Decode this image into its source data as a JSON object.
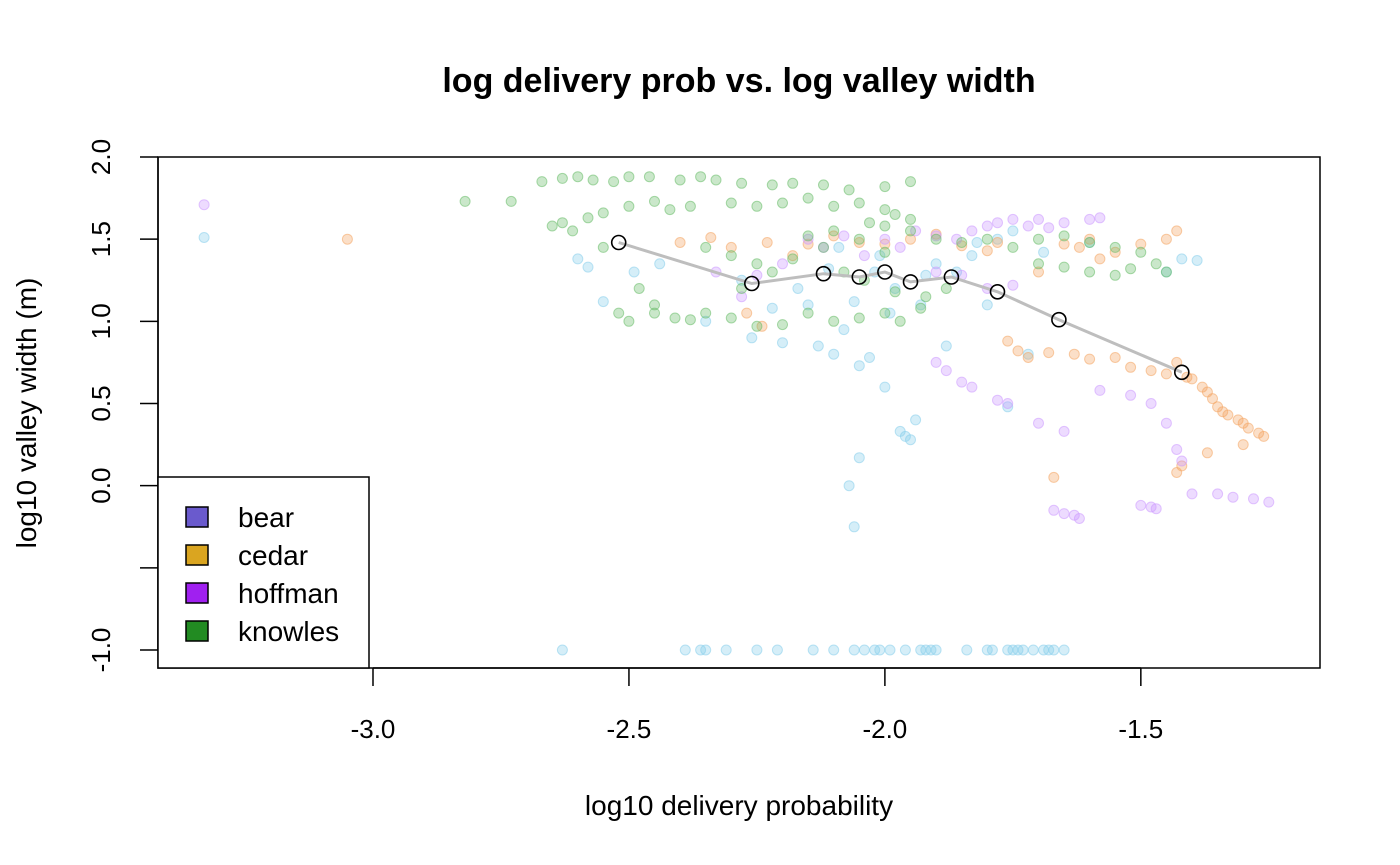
{
  "chart_data": {
    "type": "scatter",
    "title": "log delivery prob vs. log valley width",
    "xlabel": "log10 delivery probability",
    "ylabel": "log10 valley width (m)",
    "xlim": [
      -3.42,
      -1.15
    ],
    "ylim": [
      -1.1,
      2.0
    ],
    "x_ticks": [
      {
        "value": -3.0,
        "label": "-3.0"
      },
      {
        "value": -2.5,
        "label": "-2.5"
      },
      {
        "value": -2.0,
        "label": "-2.0"
      },
      {
        "value": -1.5,
        "label": "-1.5"
      }
    ],
    "y_ticks": [
      {
        "value": 2.0,
        "label": "2.0"
      },
      {
        "value": 1.5,
        "label": "1.5"
      },
      {
        "value": 1.0,
        "label": "1.0"
      },
      {
        "value": 0.5,
        "label": "0.5"
      },
      {
        "value": 0.0,
        "label": "0.0"
      },
      {
        "value": -0.5,
        "label": ""
      },
      {
        "value": -1.0,
        "label": "-1.0"
      }
    ],
    "grid": false,
    "legend_position": "bottom-left",
    "legend": [
      {
        "name": "bear",
        "color": "#6A5ACD"
      },
      {
        "name": "cedar",
        "color": "#DAA520"
      },
      {
        "name": "hoffman",
        "color": "#A020F0"
      },
      {
        "name": "knowles",
        "color": "#228B22"
      }
    ],
    "series": [
      {
        "point_color": "#87CEEB",
        "points": [
          [
            -3.33,
            1.51
          ],
          [
            -2.63,
            -1.0
          ],
          [
            -2.39,
            -1.0
          ],
          [
            -2.36,
            -1.0
          ],
          [
            -2.35,
            -1.0
          ],
          [
            -2.31,
            -1.0
          ],
          [
            -2.25,
            -1.0
          ],
          [
            -2.21,
            -1.0
          ],
          [
            -2.14,
            -1.0
          ],
          [
            -2.1,
            -1.0
          ],
          [
            -2.06,
            -1.0
          ],
          [
            -2.04,
            -1.0
          ],
          [
            -2.02,
            -1.0
          ],
          [
            -2.01,
            -1.0
          ],
          [
            -1.99,
            -1.0
          ],
          [
            -1.96,
            -1.0
          ],
          [
            -1.93,
            -1.0
          ],
          [
            -1.92,
            -1.0
          ],
          [
            -1.91,
            -1.0
          ],
          [
            -1.9,
            -1.0
          ],
          [
            -1.84,
            -1.0
          ],
          [
            -1.8,
            -1.0
          ],
          [
            -1.79,
            -1.0
          ],
          [
            -1.76,
            -1.0
          ],
          [
            -1.75,
            -1.0
          ],
          [
            -1.74,
            -1.0
          ],
          [
            -1.73,
            -1.0
          ],
          [
            -1.71,
            -1.0
          ],
          [
            -1.69,
            -1.0
          ],
          [
            -1.68,
            -1.0
          ],
          [
            -1.67,
            -1.0
          ],
          [
            -1.65,
            -1.0
          ],
          [
            -2.6,
            1.38
          ],
          [
            -2.58,
            1.33
          ],
          [
            -2.55,
            1.12
          ],
          [
            -2.49,
            1.3
          ],
          [
            -2.44,
            1.35
          ],
          [
            -2.35,
            1.0
          ],
          [
            -2.28,
            1.25
          ],
          [
            -2.26,
            0.9
          ],
          [
            -2.22,
            1.08
          ],
          [
            -2.2,
            0.87
          ],
          [
            -2.17,
            1.2
          ],
          [
            -2.13,
            0.85
          ],
          [
            -2.1,
            0.8
          ],
          [
            -2.08,
            0.95
          ],
          [
            -2.06,
            1.12
          ],
          [
            -2.05,
            0.73
          ],
          [
            -2.03,
            0.78
          ],
          [
            -2.02,
            1.3
          ],
          [
            -2.0,
            0.6
          ],
          [
            -1.98,
            1.2
          ],
          [
            -1.97,
            0.33
          ],
          [
            -1.96,
            0.3
          ],
          [
            -1.95,
            0.28
          ],
          [
            -1.94,
            0.4
          ],
          [
            -1.93,
            1.1
          ],
          [
            -1.9,
            1.35
          ],
          [
            -1.88,
            0.85
          ],
          [
            -1.82,
            1.48
          ],
          [
            -1.8,
            1.1
          ],
          [
            -1.76,
            0.48
          ],
          [
            -1.72,
            0.8
          ],
          [
            -1.69,
            1.42
          ],
          [
            -1.6,
            1.48
          ],
          [
            -1.45,
            1.3
          ],
          [
            -1.42,
            1.38
          ],
          [
            -1.39,
            1.37
          ],
          [
            -2.07,
            0.0
          ],
          [
            -2.06,
            -0.25
          ],
          [
            -2.05,
            0.17
          ],
          [
            -2.15,
            1.1
          ],
          [
            -2.11,
            1.32
          ],
          [
            -2.09,
            1.45
          ],
          [
            -2.01,
            1.4
          ],
          [
            -1.99,
            1.05
          ],
          [
            -1.92,
            1.28
          ],
          [
            -1.86,
            1.3
          ],
          [
            -1.83,
            1.4
          ],
          [
            -1.78,
            1.5
          ],
          [
            -1.75,
            1.55
          ]
        ]
      },
      {
        "point_color": "#F4A460",
        "points": [
          [
            -3.05,
            1.5
          ],
          [
            -2.4,
            1.48
          ],
          [
            -2.34,
            1.51
          ],
          [
            -2.3,
            1.45
          ],
          [
            -2.27,
            1.05
          ],
          [
            -2.24,
            0.97
          ],
          [
            -2.23,
            1.48
          ],
          [
            -2.18,
            1.4
          ],
          [
            -2.15,
            1.47
          ],
          [
            -2.1,
            1.52
          ],
          [
            -2.05,
            1.48
          ],
          [
            -2.0,
            1.47
          ],
          [
            -1.95,
            1.5
          ],
          [
            -1.9,
            1.53
          ],
          [
            -1.85,
            1.46
          ],
          [
            -1.8,
            1.43
          ],
          [
            -1.78,
            1.48
          ],
          [
            -1.76,
            0.88
          ],
          [
            -1.74,
            0.82
          ],
          [
            -1.72,
            0.78
          ],
          [
            -1.68,
            0.81
          ],
          [
            -1.63,
            0.8
          ],
          [
            -1.6,
            0.77
          ],
          [
            -1.55,
            0.78
          ],
          [
            -1.52,
            0.72
          ],
          [
            -1.48,
            0.7
          ],
          [
            -1.45,
            0.68
          ],
          [
            -1.43,
            0.75
          ],
          [
            -1.41,
            0.66
          ],
          [
            -1.4,
            0.65
          ],
          [
            -1.38,
            0.6
          ],
          [
            -1.37,
            0.57
          ],
          [
            -1.36,
            0.53
          ],
          [
            -1.35,
            0.48
          ],
          [
            -1.34,
            0.45
          ],
          [
            -1.33,
            0.43
          ],
          [
            -1.31,
            0.4
          ],
          [
            -1.3,
            0.38
          ],
          [
            -1.29,
            0.35
          ],
          [
            -1.27,
            0.32
          ],
          [
            -1.26,
            0.3
          ],
          [
            -1.3,
            0.25
          ],
          [
            -1.37,
            0.2
          ],
          [
            -1.42,
            0.12
          ],
          [
            -1.43,
            0.08
          ],
          [
            -1.67,
            0.05
          ],
          [
            -1.45,
            1.5
          ],
          [
            -1.5,
            1.47
          ],
          [
            -1.55,
            1.42
          ],
          [
            -1.58,
            1.38
          ],
          [
            -1.6,
            1.5
          ],
          [
            -1.62,
            1.45
          ],
          [
            -1.65,
            1.47
          ],
          [
            -1.7,
            1.3
          ],
          [
            -1.43,
            1.55
          ]
        ]
      },
      {
        "point_color": "#CC99FF",
        "points": [
          [
            -3.33,
            1.71
          ],
          [
            -2.33,
            1.3
          ],
          [
            -2.28,
            1.15
          ],
          [
            -2.25,
            1.28
          ],
          [
            -2.2,
            1.35
          ],
          [
            -2.15,
            1.5
          ],
          [
            -2.12,
            1.45
          ],
          [
            -2.08,
            1.52
          ],
          [
            -2.04,
            1.4
          ],
          [
            -2.0,
            1.5
          ],
          [
            -1.97,
            1.45
          ],
          [
            -1.94,
            1.55
          ],
          [
            -1.9,
            1.52
          ],
          [
            -1.86,
            1.5
          ],
          [
            -1.83,
            1.55
          ],
          [
            -1.8,
            1.58
          ],
          [
            -1.78,
            1.6
          ],
          [
            -1.75,
            1.62
          ],
          [
            -1.72,
            1.58
          ],
          [
            -1.7,
            1.62
          ],
          [
            -1.68,
            1.57
          ],
          [
            -1.65,
            1.6
          ],
          [
            -1.6,
            1.62
          ],
          [
            -1.58,
            1.63
          ],
          [
            -1.9,
            0.75
          ],
          [
            -1.88,
            0.7
          ],
          [
            -1.85,
            0.63
          ],
          [
            -1.83,
            0.6
          ],
          [
            -1.78,
            0.52
          ],
          [
            -1.76,
            0.5
          ],
          [
            -1.7,
            0.38
          ],
          [
            -1.65,
            0.33
          ],
          [
            -1.58,
            0.58
          ],
          [
            -1.52,
            0.55
          ],
          [
            -1.48,
            0.5
          ],
          [
            -1.45,
            0.38
          ],
          [
            -1.43,
            0.22
          ],
          [
            -1.42,
            0.15
          ],
          [
            -1.67,
            -0.15
          ],
          [
            -1.65,
            -0.17
          ],
          [
            -1.63,
            -0.18
          ],
          [
            -1.62,
            -0.2
          ],
          [
            -1.5,
            -0.12
          ],
          [
            -1.48,
            -0.13
          ],
          [
            -1.47,
            -0.14
          ],
          [
            -1.4,
            -0.05
          ],
          [
            -1.35,
            -0.05
          ],
          [
            -1.32,
            -0.07
          ],
          [
            -1.28,
            -0.08
          ],
          [
            -1.25,
            -0.1
          ],
          [
            -1.9,
            1.3
          ],
          [
            -1.85,
            1.28
          ],
          [
            -1.8,
            1.2
          ],
          [
            -1.75,
            1.22
          ]
        ]
      },
      {
        "point_color": "#66BB66",
        "points": [
          [
            -2.82,
            1.73
          ],
          [
            -2.73,
            1.73
          ],
          [
            -2.67,
            1.85
          ],
          [
            -2.63,
            1.87
          ],
          [
            -2.6,
            1.88
          ],
          [
            -2.57,
            1.86
          ],
          [
            -2.53,
            1.85
          ],
          [
            -2.5,
            1.88
          ],
          [
            -2.46,
            1.88
          ],
          [
            -2.4,
            1.86
          ],
          [
            -2.36,
            1.88
          ],
          [
            -2.33,
            1.86
          ],
          [
            -2.28,
            1.84
          ],
          [
            -2.22,
            1.83
          ],
          [
            -2.18,
            1.84
          ],
          [
            -2.12,
            1.83
          ],
          [
            -2.07,
            1.8
          ],
          [
            -2.0,
            1.82
          ],
          [
            -1.95,
            1.85
          ],
          [
            -2.65,
            1.58
          ],
          [
            -2.63,
            1.6
          ],
          [
            -2.61,
            1.55
          ],
          [
            -2.58,
            1.63
          ],
          [
            -2.55,
            1.66
          ],
          [
            -2.5,
            1.7
          ],
          [
            -2.45,
            1.73
          ],
          [
            -2.42,
            1.68
          ],
          [
            -2.38,
            1.7
          ],
          [
            -2.3,
            1.72
          ],
          [
            -2.25,
            1.7
          ],
          [
            -2.2,
            1.72
          ],
          [
            -2.15,
            1.75
          ],
          [
            -2.1,
            1.7
          ],
          [
            -2.05,
            1.72
          ],
          [
            -2.0,
            1.68
          ],
          [
            -1.98,
            1.65
          ],
          [
            -1.95,
            1.62
          ],
          [
            -2.5,
            1.0
          ],
          [
            -2.45,
            1.05
          ],
          [
            -2.41,
            1.02
          ],
          [
            -2.38,
            1.01
          ],
          [
            -2.35,
            1.05
          ],
          [
            -2.3,
            1.02
          ],
          [
            -2.25,
            0.97
          ],
          [
            -2.2,
            0.98
          ],
          [
            -2.15,
            1.05
          ],
          [
            -2.1,
            1.0
          ],
          [
            -2.05,
            1.02
          ],
          [
            -2.0,
            1.05
          ],
          [
            -1.97,
            1.0
          ],
          [
            -1.93,
            1.08
          ],
          [
            -2.35,
            1.45
          ],
          [
            -2.3,
            1.4
          ],
          [
            -2.25,
            1.35
          ],
          [
            -2.15,
            1.52
          ],
          [
            -2.1,
            1.55
          ],
          [
            -2.05,
            1.5
          ],
          [
            -2.0,
            1.58
          ],
          [
            -1.95,
            1.55
          ],
          [
            -1.9,
            1.5
          ],
          [
            -1.85,
            1.48
          ],
          [
            -1.8,
            1.5
          ],
          [
            -1.75,
            1.45
          ],
          [
            -1.7,
            1.5
          ],
          [
            -1.65,
            1.52
          ],
          [
            -1.6,
            1.48
          ],
          [
            -1.55,
            1.45
          ],
          [
            -1.5,
            1.42
          ],
          [
            -1.47,
            1.35
          ],
          [
            -1.45,
            1.3
          ],
          [
            -1.52,
            1.32
          ],
          [
            -1.55,
            1.28
          ],
          [
            -1.6,
            1.3
          ],
          [
            -1.65,
            1.33
          ],
          [
            -1.7,
            1.35
          ],
          [
            -2.08,
            1.3
          ],
          [
            -2.04,
            1.25
          ],
          [
            -1.98,
            1.18
          ],
          [
            -1.92,
            1.15
          ],
          [
            -1.88,
            1.2
          ],
          [
            -2.0,
            1.42
          ],
          [
            -2.03,
            1.6
          ],
          [
            -2.12,
            1.45
          ],
          [
            -2.18,
            1.38
          ],
          [
            -2.22,
            1.3
          ],
          [
            -2.28,
            1.2
          ],
          [
            -2.55,
            1.45
          ],
          [
            -2.48,
            1.2
          ],
          [
            -2.45,
            1.1
          ],
          [
            -2.52,
            1.05
          ]
        ]
      }
    ],
    "trend": {
      "line_color": "#BEBEBE",
      "points": [
        [
          -2.52,
          1.48
        ],
        [
          -2.26,
          1.23
        ],
        [
          -2.12,
          1.29
        ],
        [
          -2.05,
          1.27
        ],
        [
          -2.0,
          1.3
        ],
        [
          -1.95,
          1.24
        ],
        [
          -1.87,
          1.27
        ],
        [
          -1.78,
          1.18
        ],
        [
          -1.66,
          1.01
        ],
        [
          -1.42,
          0.69
        ]
      ]
    }
  }
}
